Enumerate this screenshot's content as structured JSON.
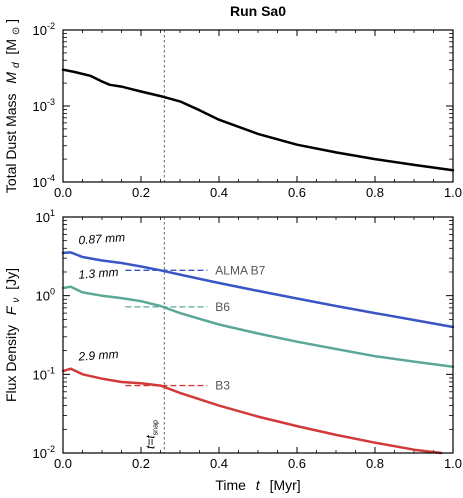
{
  "chart_data": [
    {
      "type": "line",
      "title": "Run Sa0",
      "ylabel": "Total Dust Mass  M_d [M_⊙]",
      "ylabel_parts": {
        "main": "Total Dust Mass",
        "sym": "M",
        "sub": "d",
        "unit_open": "[M",
        "unit_close": "]"
      },
      "xlim": [
        0,
        1.0
      ],
      "ylim": [
        0.0001,
        0.01
      ],
      "yscale": "log",
      "x_ticks": [
        "0.0",
        "0.2",
        "0.4",
        "0.6",
        "0.8",
        "1.0"
      ],
      "y_ticks": [
        {
          "base": "10",
          "exp": "-4"
        },
        {
          "base": "10",
          "exp": "-3"
        },
        {
          "base": "10",
          "exp": "-2"
        }
      ],
      "vline": {
        "x": 0.26,
        "color": "#7f7f7f"
      },
      "series": [
        {
          "color": "#000000",
          "x": [
            0,
            0.03,
            0.07,
            0.1,
            0.12,
            0.15,
            0.2,
            0.25,
            0.3,
            0.35,
            0.4,
            0.5,
            0.6,
            0.7,
            0.8,
            0.9,
            1.0
          ],
          "y": [
            0.003,
            0.0028,
            0.0025,
            0.0021,
            0.0019,
            0.0018,
            0.00155,
            0.00135,
            0.00115,
            0.00088,
            0.00066,
            0.00043,
            0.00031,
            0.000245,
            0.0002,
            0.000168,
            0.000143
          ]
        }
      ]
    },
    {
      "type": "line",
      "xlabel": "Time  t  [Myr]",
      "xlabel_parts": {
        "main": "Time",
        "sym": "t",
        "unit": "[Myr]"
      },
      "ylabel": "Flux Density  F_ν [Jy]",
      "ylabel_parts": {
        "main": "Flux Density",
        "sym": "F",
        "sub": "ν",
        "unit": "[Jy]"
      },
      "xlim": [
        0,
        1.0
      ],
      "ylim": [
        0.01,
        10
      ],
      "yscale": "log",
      "x_ticks": [
        "0.0",
        "0.2",
        "0.4",
        "0.6",
        "0.8",
        "1.0"
      ],
      "y_ticks": [
        {
          "base": "10",
          "exp": "-2"
        },
        {
          "base": "10",
          "exp": "-1"
        },
        {
          "base": "10",
          "exp": "0"
        },
        {
          "base": "10",
          "exp": "1"
        }
      ],
      "vline": {
        "x": 0.26,
        "color": "#7f7f7f",
        "label_main": "t=t",
        "label_sub": "snap"
      },
      "series": [
        {
          "name": "0.87 mm",
          "color": "#3a56c4",
          "x": [
            0,
            0.02,
            0.05,
            0.1,
            0.15,
            0.2,
            0.25,
            0.3,
            0.4,
            0.5,
            0.6,
            0.7,
            0.8,
            0.9,
            1.0
          ],
          "y": [
            3.5,
            3.55,
            3.1,
            2.8,
            2.6,
            2.35,
            2.1,
            1.85,
            1.45,
            1.15,
            0.92,
            0.74,
            0.6,
            0.49,
            0.4
          ],
          "ref": {
            "value": 2.1,
            "x0": 0.16,
            "x1": 0.37,
            "label": "ALMA B7"
          }
        },
        {
          "name": "1.3 mm",
          "color": "#5ca898",
          "x": [
            0,
            0.02,
            0.05,
            0.1,
            0.15,
            0.2,
            0.25,
            0.3,
            0.4,
            0.5,
            0.6,
            0.7,
            0.8,
            0.9,
            1.0
          ],
          "y": [
            1.25,
            1.3,
            1.1,
            1.0,
            0.93,
            0.85,
            0.74,
            0.6,
            0.43,
            0.33,
            0.26,
            0.21,
            0.17,
            0.145,
            0.125
          ],
          "ref": {
            "value": 0.72,
            "x0": 0.16,
            "x1": 0.37,
            "label": "B6"
          }
        },
        {
          "name": "2.9 mm",
          "color": "#d23a3a",
          "x": [
            0,
            0.02,
            0.05,
            0.1,
            0.15,
            0.2,
            0.25,
            0.3,
            0.4,
            0.5,
            0.6,
            0.7,
            0.8,
            0.9,
            0.97
          ],
          "y": [
            0.11,
            0.118,
            0.1,
            0.088,
            0.08,
            0.077,
            0.072,
            0.058,
            0.04,
            0.029,
            0.022,
            0.017,
            0.0135,
            0.011,
            0.01
          ],
          "ref": {
            "value": 0.072,
            "x0": 0.16,
            "x1": 0.37,
            "label": "B3"
          }
        }
      ]
    }
  ]
}
